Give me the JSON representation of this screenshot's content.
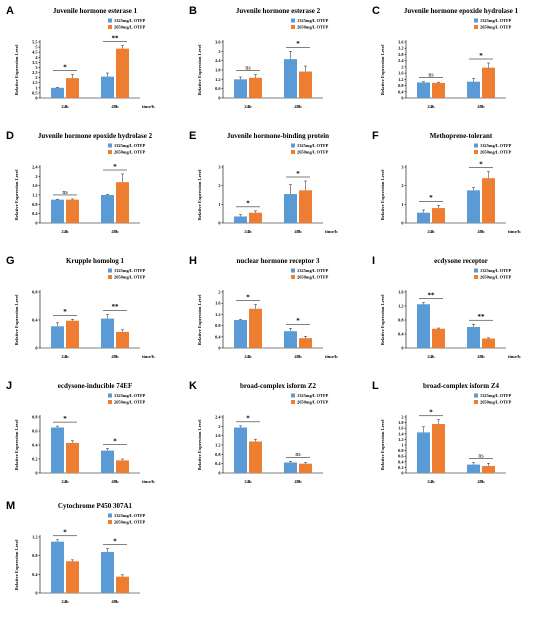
{
  "colors": {
    "series1": "#5b9bd5",
    "series2": "#ed7d31"
  },
  "legend": [
    "1325mg/L OTFP",
    "2650mg/L OTFP"
  ],
  "ylabel": "Relative Expression Level",
  "chart_data": [
    {
      "letter": "A",
      "title": "Juvenile hormone esterase 1",
      "type": "bar",
      "categories": [
        "24h",
        "48h"
      ],
      "xlabel": "time/h",
      "ylabel": "Relative Expression Level",
      "ylim": [
        0,
        5.5
      ],
      "yticks": [
        "0",
        "0.5",
        "1",
        "1.5",
        "2",
        "2.5",
        "3",
        "3.5",
        "4",
        "4.5",
        "5",
        "5.5"
      ],
      "series": [
        {
          "name": "1325mg/L OTFP",
          "values": [
            1.0,
            2.1
          ],
          "errors": [
            0.05,
            0.35
          ]
        },
        {
          "name": "2650mg/L OTFP",
          "values": [
            1.95,
            4.85
          ],
          "errors": [
            0.35,
            0.3
          ]
        }
      ],
      "sig": [
        "*",
        "**"
      ]
    },
    {
      "letter": "B",
      "title": "Juvenile hormone esterase 2",
      "type": "bar",
      "categories": [
        "24h",
        "48h"
      ],
      "xlabel": "",
      "ylabel": "Relative Expression Level",
      "ylim": [
        0,
        3.6
      ],
      "yticks": [
        "0",
        "0.6",
        "1.2",
        "1.8",
        "2.4",
        "3",
        "3.6"
      ],
      "series": [
        {
          "name": "1325mg/L OTFP",
          "values": [
            1.2,
            2.5
          ],
          "errors": [
            0.15,
            0.5
          ]
        },
        {
          "name": "2650mg/L OTFP",
          "values": [
            1.3,
            1.7
          ],
          "errors": [
            0.2,
            0.35
          ]
        }
      ],
      "sig": [
        "ns",
        "*"
      ]
    },
    {
      "letter": "C",
      "title": "Juvenile hormone epoxide hydrolase 1",
      "type": "bar",
      "categories": [
        "24h",
        "48h"
      ],
      "xlabel": "",
      "ylabel": "Relative Expression Level",
      "ylim": [
        0,
        3.6
      ],
      "yticks": [
        "0",
        "0.4",
        "0.8",
        "1.2",
        "1.6",
        "2",
        "2.4",
        "2.8",
        "3.2",
        "3.6"
      ],
      "series": [
        {
          "name": "1325mg/L OTFP",
          "values": [
            1.0,
            1.05
          ],
          "errors": [
            0.05,
            0.2
          ]
        },
        {
          "name": "2650mg/L OTFP",
          "values": [
            0.97,
            1.95
          ],
          "errors": [
            0.05,
            0.3
          ]
        }
      ],
      "sig": [
        "ns",
        "*"
      ]
    },
    {
      "letter": "D",
      "title": "Juvenile hormone epoxide hydrolase 2",
      "type": "bar",
      "categories": [
        "24h",
        "48h"
      ],
      "xlabel": "",
      "ylabel": "Relative Expression Level",
      "ylim": [
        0,
        2.4
      ],
      "yticks": [
        "0",
        "0.4",
        "0.8",
        "1.2",
        "1.6",
        "2",
        "2.4"
      ],
      "series": [
        {
          "name": "1325mg/L OTFP",
          "values": [
            1.0,
            1.2
          ],
          "errors": [
            0.02,
            0.03
          ]
        },
        {
          "name": "2650mg/L OTFP",
          "values": [
            1.0,
            1.75
          ],
          "errors": [
            0.03,
            0.35
          ]
        }
      ],
      "sig": [
        "ns",
        "*"
      ]
    },
    {
      "letter": "E",
      "title": "Juvenile hormone-binding protein",
      "type": "bar",
      "categories": [
        "24h",
        "48h"
      ],
      "xlabel": "time/h",
      "ylabel": "Relative Expression Level",
      "ylim": [
        0,
        3
      ],
      "yticks": [
        "0",
        "1",
        "2",
        "3"
      ],
      "series": [
        {
          "name": "1325mg/L OTFP",
          "values": [
            0.35,
            1.55
          ],
          "errors": [
            0.1,
            0.5
          ]
        },
        {
          "name": "2650mg/L OTFP",
          "values": [
            0.55,
            1.75
          ],
          "errors": [
            0.1,
            0.5
          ]
        }
      ],
      "sig": [
        "*",
        "*"
      ]
    },
    {
      "letter": "F",
      "title": "Methoprene-tolerant",
      "type": "bar",
      "categories": [
        "24h",
        "48h"
      ],
      "xlabel": "time/h",
      "ylabel": "Relative Expression Level",
      "ylim": [
        0,
        3
      ],
      "yticks": [
        "0",
        "1",
        "2",
        "3"
      ],
      "series": [
        {
          "name": "1325mg/L OTFP",
          "values": [
            0.55,
            1.75
          ],
          "errors": [
            0.15,
            0.15
          ]
        },
        {
          "name": "2650mg/L OTFP",
          "values": [
            0.8,
            2.4
          ],
          "errors": [
            0.15,
            0.35
          ]
        }
      ],
      "sig": [
        "*",
        "*"
      ]
    },
    {
      "letter": "G",
      "title": "Krupple homolog 1",
      "type": "bar",
      "categories": [
        "24h",
        "48h"
      ],
      "xlabel": "time/h",
      "ylabel": "Relative Expression Level",
      "ylim": [
        0,
        0.8
      ],
      "yticks": [
        "0",
        "0.4",
        "0.8"
      ],
      "series": [
        {
          "name": "1325mg/L OTFP",
          "values": [
            0.31,
            0.42
          ],
          "errors": [
            0.05,
            0.06
          ]
        },
        {
          "name": "2650mg/L OTFP",
          "values": [
            0.39,
            0.23
          ],
          "errors": [
            0.02,
            0.03
          ]
        }
      ],
      "sig": [
        "*",
        "**"
      ]
    },
    {
      "letter": "H",
      "title": "nuclear hormone receptor 3",
      "type": "bar",
      "categories": [
        "24h",
        "48h"
      ],
      "xlabel": "time/h",
      "ylabel": "Relative Expression Level",
      "ylim": [
        0,
        2
      ],
      "yticks": [
        "0",
        "0.4",
        "0.8",
        "1.2",
        "1.6",
        "2"
      ],
      "series": [
        {
          "name": "1325mg/L OTFP",
          "values": [
            1.0,
            0.6
          ],
          "errors": [
            0.02,
            0.1
          ]
        },
        {
          "name": "2650mg/L OTFP",
          "values": [
            1.4,
            0.35
          ],
          "errors": [
            0.15,
            0.07
          ]
        }
      ],
      "sig": [
        "*",
        "*"
      ]
    },
    {
      "letter": "I",
      "title": "ecdysone receptor",
      "type": "bar",
      "categories": [
        "24h",
        "48h"
      ],
      "xlabel": "time/h",
      "ylabel": "Relative Expression Level",
      "ylim": [
        0,
        1.6
      ],
      "yticks": [
        "0",
        "0.4",
        "0.8",
        "1.2",
        "1.6"
      ],
      "series": [
        {
          "name": "1325mg/L OTFP",
          "values": [
            1.25,
            0.6
          ],
          "errors": [
            0.05,
            0.08
          ]
        },
        {
          "name": "2650mg/L OTFP",
          "values": [
            0.55,
            0.27
          ],
          "errors": [
            0.02,
            0.02
          ]
        }
      ],
      "sig": [
        "**",
        "**"
      ]
    },
    {
      "letter": "J",
      "title": "ecdysone-inducible 74EF",
      "type": "bar",
      "categories": [
        "24h",
        "48h"
      ],
      "xlabel": "time/h",
      "ylabel": "Relative Expression Level",
      "ylim": [
        0,
        0.8
      ],
      "yticks": [
        "0",
        "0.2",
        "0.4",
        "0.6",
        "0.8"
      ],
      "series": [
        {
          "name": "1325mg/L OTFP",
          "values": [
            0.65,
            0.32
          ],
          "errors": [
            0.02,
            0.03
          ]
        },
        {
          "name": "2650mg/L OTFP",
          "values": [
            0.43,
            0.18
          ],
          "errors": [
            0.03,
            0.02
          ]
        }
      ],
      "sig": [
        "*",
        "*"
      ]
    },
    {
      "letter": "K",
      "title": "broad-complex isform Z2",
      "type": "bar",
      "categories": [
        "24h",
        "48h"
      ],
      "xlabel": "",
      "ylabel": "Relative Expression Level",
      "ylim": [
        0,
        2.4
      ],
      "yticks": [
        "0",
        "0.4",
        "0.8",
        "1.2",
        "1.6",
        "2",
        "2.4"
      ],
      "series": [
        {
          "name": "1325mg/L OTFP",
          "values": [
            1.95,
            0.45
          ],
          "errors": [
            0.07,
            0.05
          ]
        },
        {
          "name": "2650mg/L OTFP",
          "values": [
            1.35,
            0.4
          ],
          "errors": [
            0.1,
            0.05
          ]
        }
      ],
      "sig": [
        "*",
        "ns"
      ]
    },
    {
      "letter": "L",
      "title": "broad-complex isform Z4",
      "type": "bar",
      "categories": [
        "24h",
        "48h"
      ],
      "xlabel": "",
      "ylabel": "Relative Expression Level",
      "ylim": [
        0,
        2
      ],
      "yticks": [
        "0",
        "0.2",
        "0.4",
        "0.6",
        "0.8",
        "1",
        "1.2",
        "1.4",
        "1.6",
        "1.8",
        "2"
      ],
      "series": [
        {
          "name": "1325mg/L OTFP",
          "values": [
            1.45,
            0.3
          ],
          "errors": [
            0.2,
            0.07
          ]
        },
        {
          "name": "2650mg/L OTFP",
          "values": [
            1.75,
            0.25
          ],
          "errors": [
            0.15,
            0.1
          ]
        }
      ],
      "sig": [
        "*",
        "ns"
      ]
    },
    {
      "letter": "M",
      "title": "Cytochrome P450 307A1",
      "type": "bar",
      "categories": [
        "24h",
        "48h"
      ],
      "xlabel": "",
      "ylabel": "Relative Expression Level",
      "ylim": [
        0,
        1.2
      ],
      "yticks": [
        "0",
        "0.4",
        "0.8",
        "1.2"
      ],
      "series": [
        {
          "name": "1325mg/L OTFP",
          "values": [
            1.1,
            0.88
          ],
          "errors": [
            0.04,
            0.07
          ]
        },
        {
          "name": "2650mg/L OTFP",
          "values": [
            0.68,
            0.35
          ],
          "errors": [
            0.03,
            0.04
          ]
        }
      ],
      "sig": [
        "*",
        "*"
      ]
    }
  ]
}
